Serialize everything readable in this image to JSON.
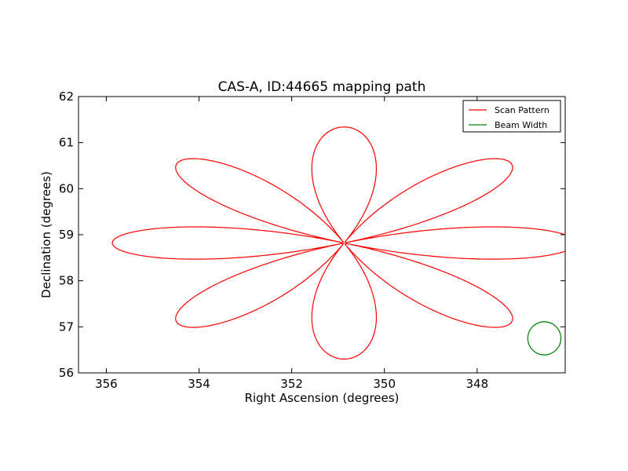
{
  "chart_data": {
    "type": "line",
    "title": "CAS-A, ID:44665 mapping path",
    "xlabel": "Right Ascension (degrees)",
    "ylabel": "Declination (degrees)",
    "xlim": [
      356.6,
      346.1
    ],
    "ylim": [
      56,
      62
    ],
    "x_inverted": true,
    "xticks": [
      356,
      354,
      352,
      350,
      348
    ],
    "yticks": [
      56,
      57,
      58,
      59,
      60,
      61,
      62
    ],
    "grid": false,
    "legend_position": "top-right",
    "rose": {
      "center": [
        350.87,
        58.82
      ],
      "radius_ra": 5.0,
      "radius_dec": 2.52,
      "petals": 8,
      "start_angle_deg": 180,
      "start_offset_deg": 1.5
    },
    "beam": {
      "center": [
        346.55,
        56.75
      ],
      "radius_dec": 0.36
    },
    "series": [
      {
        "name": "Scan Pattern",
        "color": "#ff0000"
      },
      {
        "name": "Beam Width",
        "color": "#008000"
      }
    ]
  }
}
